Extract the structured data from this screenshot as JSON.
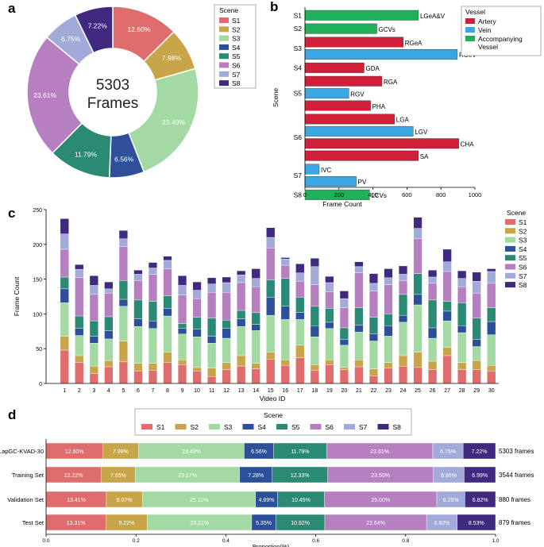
{
  "colors": {
    "S1": "#e06d6d",
    "S2": "#c9a54a",
    "S3": "#a3d9a3",
    "S4": "#2e4f9a",
    "S5": "#2b8a73",
    "S6": "#b57fc0",
    "S7": "#a2aad9",
    "S8": "#3f2a80",
    "artery": "#d11f3a",
    "vein": "#3aa7e0",
    "accompanying": "#1fb05a"
  },
  "panels": {
    "a": {
      "letter": "a"
    },
    "b": {
      "letter": "b"
    },
    "c": {
      "letter": "c"
    },
    "d": {
      "letter": "d"
    }
  },
  "chart_data": [
    {
      "type": "pie",
      "panel": "a",
      "donut": true,
      "center_number": "5303",
      "center_label": "Frames",
      "legend_title": "Scene",
      "labels": [
        "S1",
        "S2",
        "S3",
        "S4",
        "S5",
        "S6",
        "S7",
        "S8"
      ],
      "values": [
        12.6,
        7.98,
        23.49,
        6.56,
        11.79,
        23.61,
        6.75,
        7.22
      ],
      "value_labels": [
        "12.60%",
        "7.98%",
        "23.49%",
        "6.56%",
        "11.79%",
        "23.61%",
        "6.75%",
        "7.22%"
      ]
    },
    {
      "type": "bar",
      "panel": "b",
      "orientation": "horizontal",
      "ylabel": "Scene",
      "xlabel": "Frame Count",
      "xlim": [
        0,
        1000
      ],
      "xticks": [
        0,
        200,
        400,
        600,
        800,
        1000
      ],
      "legend_title": "Vessel",
      "legend": [
        {
          "name": "Artery",
          "key": "artery"
        },
        {
          "name": "Vein",
          "key": "vein"
        },
        {
          "name": "Accompanying\nVessel",
          "key": "accompanying"
        }
      ],
      "groups": [
        {
          "scene": "S1",
          "bars": [
            {
              "label": "LGeA&V",
              "value": 668,
              "type": "accompanying"
            }
          ]
        },
        {
          "scene": "S2",
          "bars": [
            {
              "label": "GCVs",
              "value": 423,
              "type": "accompanying"
            }
          ]
        },
        {
          "scene": "S3",
          "bars": [
            {
              "label": "RGeA",
              "value": 578,
              "type": "artery"
            },
            {
              "label": "RGeV",
              "value": 897,
              "type": "vein"
            }
          ]
        },
        {
          "scene": "S4",
          "bars": [
            {
              "label": "GDA",
              "value": 348,
              "type": "artery"
            }
          ]
        },
        {
          "scene": "S5",
          "bars": [
            {
              "label": "RGA",
              "value": 453,
              "type": "artery"
            },
            {
              "label": "RGV",
              "value": 258,
              "type": "vein"
            },
            {
              "label": "PHA",
              "value": 386,
              "type": "artery"
            }
          ]
        },
        {
          "scene": "S6",
          "bars": [
            {
              "label": "LGA",
              "value": 527,
              "type": "artery"
            },
            {
              "label": "LGV",
              "value": 637,
              "type": "vein"
            },
            {
              "label": "CHA",
              "value": 905,
              "type": "artery"
            },
            {
              "label": "SA",
              "value": 667,
              "type": "artery"
            }
          ]
        },
        {
          "scene": "S7",
          "bars": [
            {
              "label": "IVC",
              "value": 84,
              "type": "vein"
            },
            {
              "label": "PV",
              "value": 302,
              "type": "vein"
            }
          ]
        },
        {
          "scene": "S8",
          "bars": [
            {
              "label": "LCVs",
              "value": 380,
              "type": "accompanying"
            }
          ]
        }
      ]
    },
    {
      "type": "bar",
      "panel": "c",
      "stacked": true,
      "xlabel": "Video ID",
      "ylabel": "Frame Count",
      "ylim": [
        0,
        250
      ],
      "yticks": [
        0,
        50,
        100,
        150,
        200,
        250
      ],
      "legend_title": "Scene",
      "categories": [
        "1",
        "2",
        "3",
        "4",
        "5",
        "6",
        "7",
        "8",
        "9",
        "10",
        "11",
        "12",
        "13",
        "14",
        "15",
        "16",
        "17",
        "18",
        "19",
        "20",
        "21",
        "22",
        "23",
        "24",
        "25",
        "26",
        "27",
        "28",
        "29",
        "30"
      ],
      "series": [
        {
          "name": "S1",
          "values": [
            48,
            30,
            14,
            24,
            31,
            18,
            19,
            30,
            27,
            18,
            10,
            20,
            25,
            21,
            35,
            26,
            37,
            19,
            27,
            20,
            24,
            11,
            22,
            25,
            23,
            20,
            40,
            20,
            20,
            18
          ]
        },
        {
          "name": "S2",
          "values": [
            20,
            10,
            11,
            9,
            30,
            11,
            10,
            15,
            7,
            5,
            12,
            10,
            15,
            8,
            10,
            8,
            18,
            8,
            7,
            3,
            10,
            10,
            8,
            15,
            22,
            12,
            12,
            10,
            13,
            8
          ]
        },
        {
          "name": "S3",
          "values": [
            48,
            29,
            33,
            31,
            50,
            53,
            50,
            52,
            37,
            44,
            36,
            35,
            42,
            47,
            53,
            58,
            37,
            40,
            45,
            32,
            40,
            40,
            38,
            48,
            68,
            33,
            38,
            43,
            20,
            44
          ]
        },
        {
          "name": "S4",
          "values": [
            20,
            10,
            10,
            12,
            10,
            11,
            11,
            11,
            8,
            11,
            10,
            14,
            11,
            9,
            26,
            19,
            10,
            16,
            9,
            8,
            10,
            10,
            15,
            10,
            15,
            15,
            14,
            10,
            10,
            19
          ]
        },
        {
          "name": "S5",
          "values": [
            17,
            18,
            22,
            20,
            27,
            27,
            28,
            18,
            7,
            17,
            26,
            12,
            12,
            17,
            25,
            40,
            22,
            28,
            20,
            17,
            25,
            24,
            17,
            30,
            30,
            40,
            14,
            33,
            31,
            20
          ]
        },
        {
          "name": "S6",
          "values": [
            40,
            55,
            38,
            34,
            49,
            28,
            39,
            39,
            41,
            27,
            37,
            40,
            40,
            37,
            46,
            19,
            23,
            31,
            24,
            29,
            50,
            38,
            42,
            20,
            50,
            24,
            43,
            23,
            36,
            35
          ]
        },
        {
          "name": "S7",
          "values": [
            22,
            12,
            13,
            6,
            11,
            9,
            9,
            12,
            14,
            12,
            12,
            14,
            11,
            12,
            15,
            9,
            12,
            26,
            13,
            13,
            9,
            11,
            10,
            9,
            15,
            9,
            14,
            12,
            17,
            17
          ]
        },
        {
          "name": "S8",
          "values": [
            22,
            7,
            14,
            10,
            12,
            6,
            8,
            6,
            14,
            12,
            9,
            8,
            6,
            14,
            14,
            2,
            13,
            12,
            9,
            11,
            7,
            14,
            13,
            12,
            16,
            10,
            18,
            11,
            13,
            4
          ]
        }
      ]
    },
    {
      "type": "bar",
      "panel": "d",
      "orientation": "horizontal",
      "stacked": true,
      "normalized": true,
      "xlabel": "Proportion(%)",
      "xlim": [
        0,
        1
      ],
      "xticks": [
        "0.0",
        "0.2",
        "0.4",
        "0.6",
        "0.8",
        "1.0"
      ],
      "legend_title": "Scene",
      "series_names": [
        "S1",
        "S2",
        "S3",
        "S4",
        "S5",
        "S6",
        "S7",
        "S8"
      ],
      "rows": [
        {
          "name": "LapGC-KVAD-30",
          "total_label": "5303 frames",
          "values": [
            12.6,
            7.98,
            23.49,
            6.56,
            11.79,
            23.61,
            6.75,
            7.22
          ],
          "labels": [
            "12.60%",
            "7.98%",
            "23.49%",
            "6.56%",
            "11.79%",
            "23.61%",
            "6.75%",
            "7.22%"
          ]
        },
        {
          "name": "Training Set",
          "total_label": "3544 frames",
          "values": [
            12.22,
            7.65,
            23.17,
            7.28,
            12.33,
            23.5,
            6.86,
            6.99
          ],
          "labels": [
            "12.22%",
            "7.65%",
            "23.17%",
            "7.28%",
            "12.33%",
            "23.50%",
            "6.86%",
            "6.99%"
          ]
        },
        {
          "name": "Validation Set",
          "total_label": "880 frames",
          "values": [
            13.41,
            8.07,
            25.11,
            4.89,
            10.45,
            25.0,
            6.25,
            6.82
          ],
          "labels": [
            "13.41%",
            "8.07%",
            "25.11%",
            "4.89%",
            "10.45%",
            "25.00%",
            "6.25%",
            "6.82%"
          ]
        },
        {
          "name": "Test Set",
          "total_label": "879 frames",
          "values": [
            13.31,
            9.22,
            23.21,
            5.35,
            10.92,
            22.64,
            6.82,
            8.53
          ],
          "labels": [
            "13.31%",
            "9.22%",
            "23.21%",
            "5.35%",
            "10.92%",
            "22.64%",
            "6.82%",
            "8.53%"
          ]
        }
      ]
    }
  ]
}
